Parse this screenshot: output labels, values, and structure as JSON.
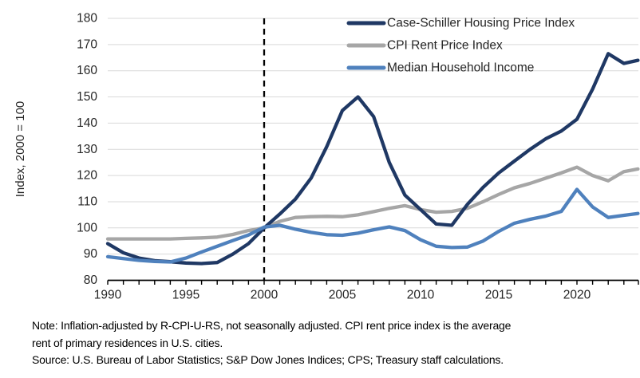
{
  "chart_data": {
    "type": "line",
    "title": "",
    "xlabel": "",
    "ylabel": "Index, 2000 = 100",
    "ylim": [
      80,
      180
    ],
    "yticks": [
      80,
      90,
      100,
      110,
      120,
      130,
      140,
      150,
      160,
      170,
      180
    ],
    "xlim": [
      1990,
      2023.9
    ],
    "xticks_labeled": [
      1990,
      1995,
      2000,
      2005,
      2010,
      2015,
      2020
    ],
    "xticks_minor_every": 1,
    "reference_line_x": 2000,
    "grid": "horizontal",
    "legend_position": "top-right",
    "x": [
      1990,
      1991,
      1992,
      1993,
      1994,
      1995,
      1996,
      1997,
      1998,
      1999,
      2000,
      2001,
      2002,
      2003,
      2004,
      2005,
      2006,
      2007,
      2008,
      2009,
      2010,
      2011,
      2012,
      2013,
      2014,
      2015,
      2016,
      2017,
      2018,
      2019,
      2020,
      2021,
      2022,
      2023,
      2023.9
    ],
    "series": [
      {
        "name": "Case-Schiller Housing Price Index",
        "color": "#1f3864",
        "z": 2,
        "values": [
          94,
          90.5,
          88.5,
          87.5,
          87.1,
          86.6,
          86.4,
          86.8,
          90,
          94,
          100,
          105.3,
          111,
          119,
          131,
          144.8,
          150,
          142.5,
          125,
          112.5,
          107,
          101.5,
          101,
          109,
          115.5,
          121,
          125.5,
          130,
          134,
          137,
          141.5,
          153,
          166.5,
          162.8,
          164
        ]
      },
      {
        "name": "CPI Rent Price Index",
        "color": "#a6a6a6",
        "z": 1,
        "values": [
          95.8,
          95.8,
          95.8,
          95.8,
          95.8,
          96,
          96.2,
          96.5,
          97.5,
          99,
          100,
          102.5,
          104,
          104.3,
          104.4,
          104.3,
          105,
          106.2,
          107.5,
          108.5,
          107,
          106,
          106.3,
          107.5,
          110,
          112.8,
          115.3,
          117,
          119,
          121,
          123.2,
          120,
          118,
          121.5,
          122.5
        ]
      },
      {
        "name": "Median Household Income",
        "color": "#4f81bd",
        "z": 3,
        "values": [
          89,
          88.3,
          87.6,
          87.2,
          87,
          88.5,
          90.8,
          93,
          95.2,
          97.3,
          100.3,
          101,
          99.5,
          98.3,
          97.4,
          97.2,
          98,
          99.3,
          100.4,
          99,
          95.5,
          93,
          92.5,
          92.7,
          95,
          98.7,
          101.8,
          103.3,
          104.5,
          106.3,
          114.7,
          108,
          104,
          104.8,
          105.5
        ]
      }
    ],
    "colors": {
      "gridline": "#d9d9d9",
      "axis": "#000000",
      "tick_label": "#262626",
      "reference_line": "#000000",
      "legend_text": "#262626"
    }
  },
  "footnote": {
    "lines": [
      "Note: Inflation-adjusted by R-CPI-U-RS, not seasonally adjusted. CPI rent price index is the average",
      "rent of primary residences in U.S. cities.",
      "Source: U.S. Bureau of Labor Statistics; S&P Dow Jones Indices; CPS; Treasury staff calculations."
    ]
  }
}
